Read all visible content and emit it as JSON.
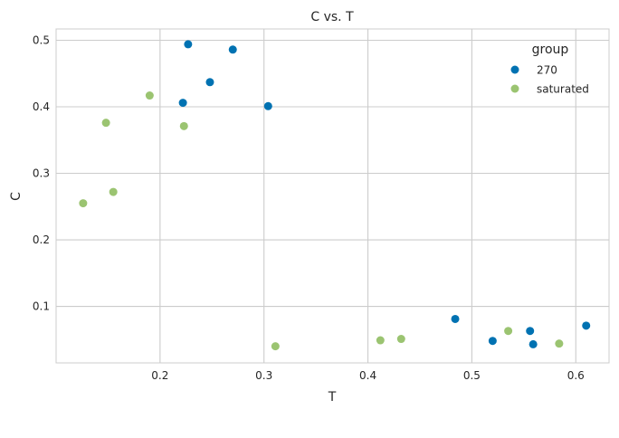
{
  "chart_data": {
    "type": "scatter",
    "title": "C vs. T",
    "xlabel": "T",
    "ylabel": "C",
    "xlim": [
      0.1,
      0.632
    ],
    "ylim": [
      0.015,
      0.517
    ],
    "xticks": [
      0.2,
      0.3,
      0.4,
      0.5,
      0.6
    ],
    "xtick_labels": [
      "0.2",
      "0.3",
      "0.4",
      "0.5",
      "0.6"
    ],
    "yticks": [
      0.1,
      0.2,
      0.3,
      0.4,
      0.5
    ],
    "ytick_labels": [
      "0.1",
      "0.2",
      "0.3",
      "0.4",
      "0.5"
    ],
    "grid": true,
    "legend": {
      "title": "group",
      "position": "top-right"
    },
    "series": [
      {
        "name": "270",
        "color": "#0072B2",
        "points": [
          {
            "x": 0.227,
            "y": 0.494
          },
          {
            "x": 0.27,
            "y": 0.486
          },
          {
            "x": 0.248,
            "y": 0.437
          },
          {
            "x": 0.222,
            "y": 0.406
          },
          {
            "x": 0.304,
            "y": 0.401
          },
          {
            "x": 0.484,
            "y": 0.081
          },
          {
            "x": 0.52,
            "y": 0.048
          },
          {
            "x": 0.556,
            "y": 0.063
          },
          {
            "x": 0.559,
            "y": 0.043
          },
          {
            "x": 0.61,
            "y": 0.071
          }
        ]
      },
      {
        "name": "saturated",
        "color": "#9BC471",
        "points": [
          {
            "x": 0.19,
            "y": 0.417
          },
          {
            "x": 0.148,
            "y": 0.376
          },
          {
            "x": 0.223,
            "y": 0.371
          },
          {
            "x": 0.155,
            "y": 0.272
          },
          {
            "x": 0.126,
            "y": 0.255
          },
          {
            "x": 0.311,
            "y": 0.04
          },
          {
            "x": 0.412,
            "y": 0.049
          },
          {
            "x": 0.432,
            "y": 0.051
          },
          {
            "x": 0.535,
            "y": 0.063
          },
          {
            "x": 0.584,
            "y": 0.044
          }
        ]
      }
    ]
  }
}
